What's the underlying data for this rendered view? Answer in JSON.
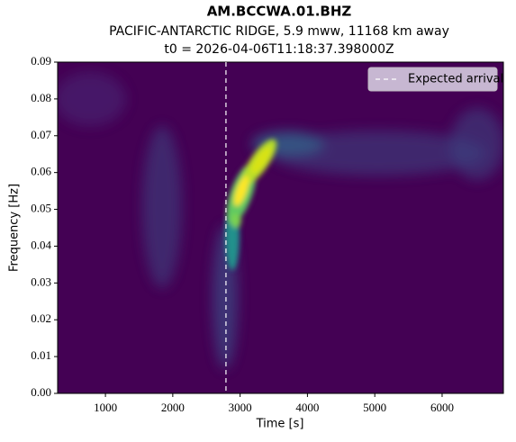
{
  "chart_data": {
    "type": "spectrogram",
    "title": "AM.BCCWA.01.BHZ",
    "subtitle": "PACIFIC-ANTARCTIC RIDGE, 5.9 mww, 11168 km away",
    "subtitle2": "t0 = 2026-04-06T11:18:37.398000Z",
    "xlabel": "Time [s]",
    "ylabel": "Frequency [Hz]",
    "xlim": [
      290,
      6910
    ],
    "ylim": [
      0,
      0.09
    ],
    "xticks": [
      1000,
      2000,
      3000,
      4000,
      5000,
      6000
    ],
    "yticks": [
      {
        "value": 0,
        "label": "0.00"
      },
      {
        "value": 0.01,
        "label": "0.01"
      },
      {
        "value": 0.02,
        "label": "0.02"
      },
      {
        "value": 0.03,
        "label": "0.03"
      },
      {
        "value": 0.04,
        "label": "0.04"
      },
      {
        "value": 0.05,
        "label": "0.05"
      },
      {
        "value": 0.06,
        "label": "0.06"
      },
      {
        "value": 0.07,
        "label": "0.07"
      },
      {
        "value": 0.08,
        "label": "0.08"
      },
      {
        "value": 0.09,
        "label": "0.09"
      }
    ],
    "vlines": [
      {
        "x": 2790,
        "label": "Expected arrival",
        "color": "#ffffff"
      }
    ],
    "legend": "upper right"
  }
}
